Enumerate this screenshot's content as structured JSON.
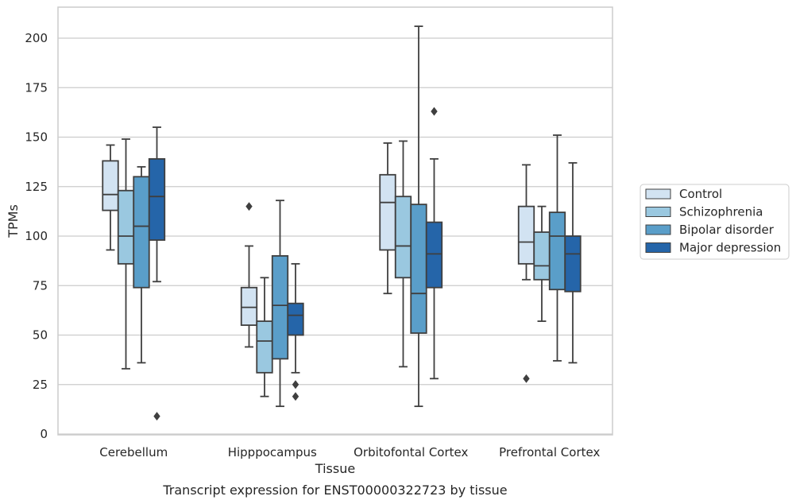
{
  "chart_data": {
    "type": "box",
    "caption": "Transcript expression for ENST00000322723 by tissue",
    "xlabel": "Tissue",
    "ylabel": "TPMs",
    "ylim": [
      0,
      215
    ],
    "yticks": [
      0,
      25,
      50,
      75,
      100,
      125,
      150,
      175,
      200
    ],
    "grid": true,
    "legend_position": "right",
    "categories": [
      "Cerebellum",
      "Hipppocampus",
      "Orbitofontal Cortex",
      "Prefrontal Cortex"
    ],
    "series": [
      {
        "name": "Control",
        "color": "#d2e3f2",
        "boxes": [
          {
            "whisker_low": 93,
            "q1": 113,
            "median": 121,
            "q3": 138,
            "whisker_high": 146,
            "outliers": []
          },
          {
            "whisker_low": 44,
            "q1": 55,
            "median": 64,
            "q3": 74,
            "whisker_high": 95,
            "outliers": [
              115
            ]
          },
          {
            "whisker_low": 71,
            "q1": 93,
            "median": 117,
            "q3": 131,
            "whisker_high": 147,
            "outliers": []
          },
          {
            "whisker_low": 78,
            "q1": 86,
            "median": 97,
            "q3": 115,
            "whisker_high": 136,
            "outliers": [
              28
            ]
          }
        ]
      },
      {
        "name": "Schizophrenia",
        "color": "#9ac8e0",
        "boxes": [
          {
            "whisker_low": 33,
            "q1": 86,
            "median": 100,
            "q3": 123,
            "whisker_high": 149,
            "outliers": []
          },
          {
            "whisker_low": 19,
            "q1": 31,
            "median": 47,
            "q3": 57,
            "whisker_high": 79,
            "outliers": []
          },
          {
            "whisker_low": 34,
            "q1": 79,
            "median": 95,
            "q3": 120,
            "whisker_high": 148,
            "outliers": []
          },
          {
            "whisker_low": 57,
            "q1": 78,
            "median": 85,
            "q3": 102,
            "whisker_high": 115,
            "outliers": []
          }
        ]
      },
      {
        "name": "Bipolar disorder",
        "color": "#5a9ec9",
        "boxes": [
          {
            "whisker_low": 36,
            "q1": 74,
            "median": 105,
            "q3": 130,
            "whisker_high": 135,
            "outliers": []
          },
          {
            "whisker_low": 14,
            "q1": 38,
            "median": 65,
            "q3": 90,
            "whisker_high": 118,
            "outliers": []
          },
          {
            "whisker_low": 14,
            "q1": 51,
            "median": 71,
            "q3": 116,
            "whisker_high": 206,
            "outliers": []
          },
          {
            "whisker_low": 37,
            "q1": 73,
            "median": 100,
            "q3": 112,
            "whisker_high": 151,
            "outliers": []
          }
        ]
      },
      {
        "name": "Major depression",
        "color": "#2565a9",
        "boxes": [
          {
            "whisker_low": 77,
            "q1": 98,
            "median": 120,
            "q3": 139,
            "whisker_high": 155,
            "outliers": [
              9
            ]
          },
          {
            "whisker_low": 31,
            "q1": 50,
            "median": 60,
            "q3": 66,
            "whisker_high": 86,
            "outliers": [
              25,
              19
            ]
          },
          {
            "whisker_low": 28,
            "q1": 74,
            "median": 91,
            "q3": 107,
            "whisker_high": 139,
            "outliers": [
              163
            ]
          },
          {
            "whisker_low": 36,
            "q1": 72,
            "median": 91,
            "q3": 100,
            "whisker_high": 137,
            "outliers": []
          }
        ]
      }
    ]
  }
}
